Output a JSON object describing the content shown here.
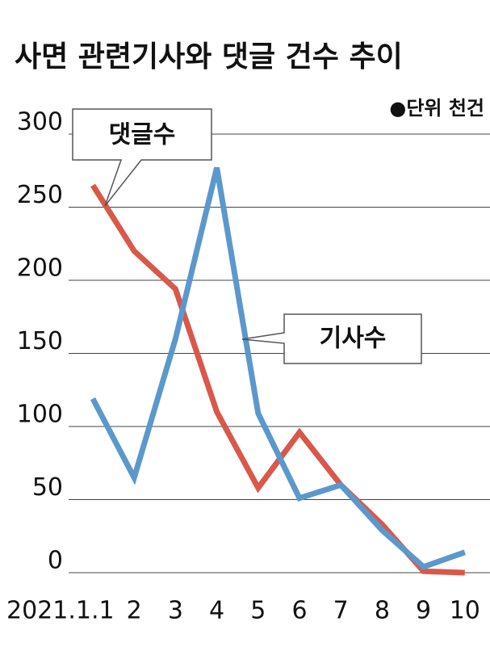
{
  "chart_data": {
    "type": "line",
    "title": "사면 관련기사와 댓글 건수 추이",
    "unit_label": "●단위 천건",
    "categories": [
      "2021.1.1",
      "2",
      "3",
      "4",
      "5",
      "6",
      "7",
      "8",
      "9",
      "10"
    ],
    "series": [
      {
        "name": "댓글수",
        "color": "#d9584a",
        "values": [
          265,
          220,
          194,
          110,
          58,
          96,
          60,
          33,
          1,
          0
        ]
      },
      {
        "name": "기사수",
        "color": "#5b98cc",
        "values": [
          119,
          65,
          160,
          277,
          109,
          51,
          60,
          29,
          4,
          14
        ]
      }
    ],
    "ylim": [
      0,
      300
    ],
    "yticks": [
      0,
      50,
      100,
      150,
      200,
      250,
      300
    ],
    "grid": true
  }
}
